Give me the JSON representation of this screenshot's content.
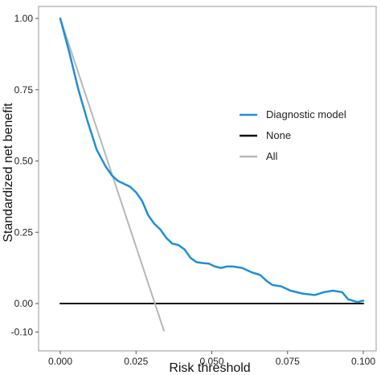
{
  "chart_data": {
    "type": "line",
    "title": "",
    "xlabel": "Risk threshold",
    "ylabel": "Standardized net benefit",
    "xlim": [
      0.0,
      0.1
    ],
    "ylim": [
      -0.12,
      1.02
    ],
    "x_ticks": [
      0.0,
      0.025,
      0.05,
      0.075,
      0.1
    ],
    "x_tick_labels": [
      "0.000",
      "0.025",
      "0.050",
      "0.075",
      "0.100"
    ],
    "y_ticks": [
      -0.1,
      0.0,
      0.25,
      0.5,
      0.75,
      1.0
    ],
    "y_tick_labels": [
      "-0.10",
      "0.00",
      "0.25",
      "0.50",
      "0.75",
      "1.00"
    ],
    "grid": false,
    "legend_position": "right",
    "series": [
      {
        "name": "Diagnostic model",
        "color": "#1f8fd6",
        "x": [
          0.0,
          0.003,
          0.006,
          0.009,
          0.012,
          0.015,
          0.017,
          0.019,
          0.021,
          0.023,
          0.025,
          0.027,
          0.029,
          0.031,
          0.033,
          0.035,
          0.037,
          0.039,
          0.041,
          0.043,
          0.045,
          0.047,
          0.049,
          0.051,
          0.053,
          0.055,
          0.057,
          0.06,
          0.063,
          0.066,
          0.068,
          0.07,
          0.073,
          0.076,
          0.08,
          0.084,
          0.087,
          0.09,
          0.093,
          0.095,
          0.098,
          0.1
        ],
        "y": [
          1.0,
          0.88,
          0.75,
          0.64,
          0.54,
          0.48,
          0.45,
          0.43,
          0.42,
          0.41,
          0.39,
          0.36,
          0.31,
          0.28,
          0.26,
          0.23,
          0.21,
          0.205,
          0.19,
          0.16,
          0.145,
          0.142,
          0.14,
          0.13,
          0.125,
          0.13,
          0.13,
          0.125,
          0.11,
          0.1,
          0.08,
          0.065,
          0.06,
          0.045,
          0.035,
          0.03,
          0.04,
          0.045,
          0.04,
          0.015,
          0.005,
          0.01
        ]
      },
      {
        "name": "None",
        "color": "#111111",
        "x": [
          0.0,
          0.1
        ],
        "y": [
          0.0,
          0.0
        ]
      },
      {
        "name": "All",
        "color": "#b7b7b7",
        "x": [
          0.0,
          0.0342
        ],
        "y": [
          1.0,
          -0.095
        ]
      }
    ]
  }
}
